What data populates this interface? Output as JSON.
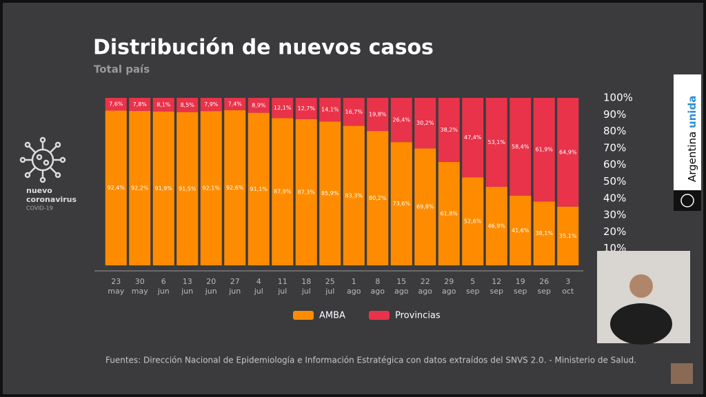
{
  "chart_data": {
    "type": "stacked_bar",
    "title": "Distribución de nuevos casos",
    "subtitle": "Total país",
    "categories": [
      [
        "23",
        "may"
      ],
      [
        "30",
        "may"
      ],
      [
        "6",
        "jun"
      ],
      [
        "13",
        "jun"
      ],
      [
        "20",
        "jun"
      ],
      [
        "27",
        "jun"
      ],
      [
        "4",
        "jul"
      ],
      [
        "11",
        "jul"
      ],
      [
        "18",
        "jul"
      ],
      [
        "25",
        "jul"
      ],
      [
        "1",
        "ago"
      ],
      [
        "8",
        "ago"
      ],
      [
        "15",
        "ago"
      ],
      [
        "22",
        "ago"
      ],
      [
        "29",
        "ago"
      ],
      [
        "5",
        "sep"
      ],
      [
        "12",
        "sep"
      ],
      [
        "19",
        "sep"
      ],
      [
        "26",
        "sep"
      ],
      [
        "3",
        "oct"
      ]
    ],
    "series": [
      {
        "name": "AMBA",
        "color": "#ff8c00",
        "values": [
          92.4,
          92.2,
          91.9,
          91.5,
          92.1,
          92.6,
          91.1,
          87.9,
          87.3,
          85.9,
          83.3,
          80.2,
          73.6,
          69.8,
          61.8,
          52.6,
          46.9,
          41.6,
          38.1,
          35.1
        ],
        "value_labels": [
          "92,4%",
          "92,2%",
          "91,9%",
          "91,5%",
          "92,1%",
          "92,6%",
          "91,1%",
          "87,9%",
          "87,3%",
          "85,9%",
          "83,3%",
          "80,2%",
          "73,6%",
          "69,8%",
          "61,8%",
          "52,6%",
          "46,9%",
          "41,6%",
          "38,1%",
          "35,1%"
        ]
      },
      {
        "name": "Provincias",
        "color": "#e8334a",
        "values": [
          7.6,
          7.8,
          8.1,
          8.5,
          7.9,
          7.4,
          8.9,
          12.1,
          12.7,
          14.1,
          16.7,
          19.8,
          26.4,
          30.2,
          38.2,
          47.4,
          53.1,
          58.4,
          61.9,
          64.9
        ],
        "value_labels": [
          "7,6%",
          "7,8%",
          "8,1%",
          "8,5%",
          "7,9%",
          "7,4%",
          "8,9%",
          "12,1%",
          "12,7%",
          "14,1%",
          "16,7%",
          "19,8%",
          "26,4%",
          "30,2%",
          "38,2%",
          "47,4%",
          "53,1%",
          "58,4%",
          "61,9%",
          "64,9%"
        ]
      }
    ],
    "ylim": [
      0,
      100
    ],
    "yticks": [
      {
        "value": 100,
        "label": "100%"
      },
      {
        "value": 90,
        "label": "90%"
      },
      {
        "value": 80,
        "label": "80%"
      },
      {
        "value": 70,
        "label": "70%"
      },
      {
        "value": 60,
        "label": "60%"
      },
      {
        "value": 50,
        "label": "50%"
      },
      {
        "value": 40,
        "label": "40%"
      },
      {
        "value": 30,
        "label": "30%"
      },
      {
        "value": 20,
        "label": "20%"
      },
      {
        "value": 10,
        "label": "10%"
      }
    ]
  },
  "logo": {
    "line1": "nuevo",
    "line2": "coronavirus",
    "line3": "COVID-19"
  },
  "brand": {
    "word1": "Argentina",
    "word2": "unida"
  },
  "footer": "Fuentes: Dirección Nacional de Epidemiología e Información Estratégica con datos extraídos del SNVS 2.0. - Ministerio de Salud."
}
